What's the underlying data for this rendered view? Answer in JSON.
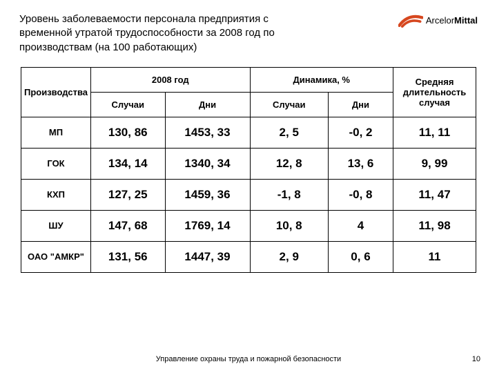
{
  "title": "Уровень заболеваемости персонала предприятия с временной утратой трудоспособности за 2008 год по производствам  (на 100 работающих)",
  "brand_a": "Arcelor",
  "brand_b": "Mittal",
  "brand_color": "#d6471f",
  "table": {
    "col_rowhdr": "Производства",
    "group_year": "2008 год",
    "group_dyn": "Динамика, %",
    "col_cases": "Случаи",
    "col_days": "Дни",
    "col_avg": "Средняя длительность случая",
    "rows": [
      {
        "label": "МП",
        "cases": "130, 86",
        "days": "1453, 33",
        "dc": "2, 5",
        "dd": "-0, 2",
        "avg": "11, 11"
      },
      {
        "label": "ГОК",
        "cases": "134, 14",
        "days": "1340, 34",
        "dc": "12, 8",
        "dd": "13, 6",
        "avg": "9, 99"
      },
      {
        "label": "КХП",
        "cases": "127, 25",
        "days": "1459, 36",
        "dc": "-1, 8",
        "dd": "-0, 8",
        "avg": "11, 47"
      },
      {
        "label": "ШУ",
        "cases": "147, 68",
        "days": "1769, 14",
        "dc": "10, 8",
        "dd": "4",
        "avg": "11, 98"
      },
      {
        "label": "ОАО \"АМКР\"",
        "cases": "131, 56",
        "days": "1447, 39",
        "dc": "2, 9",
        "dd": "0, 6",
        "avg": "11"
      }
    ]
  },
  "footer": "Управление охраны труда и пожарной безопасности",
  "pagenum": "10"
}
